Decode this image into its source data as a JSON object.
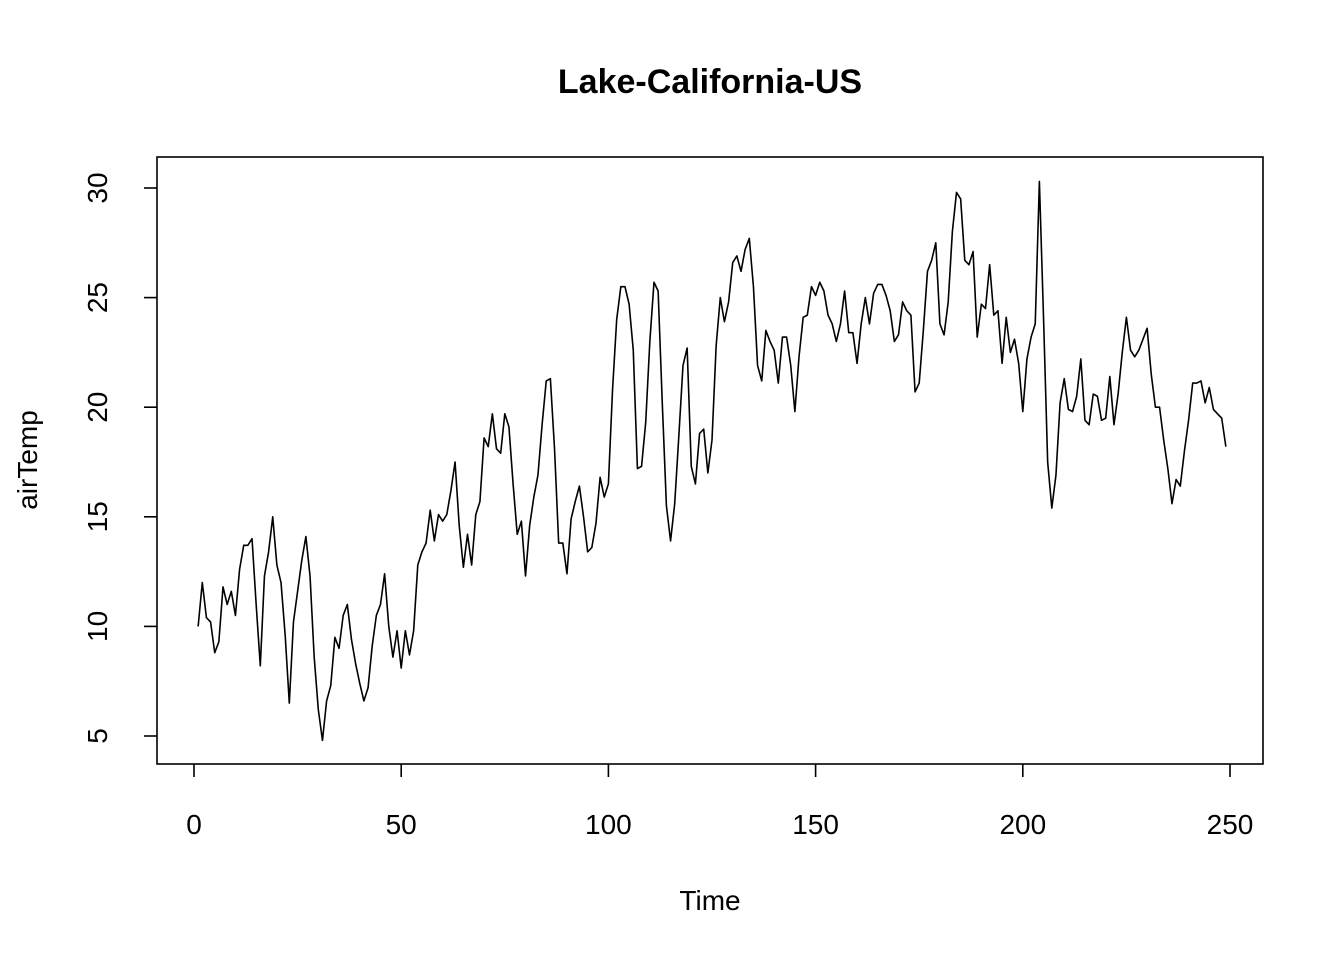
{
  "chart_data": {
    "type": "line",
    "title": "Lake-California-US",
    "xlabel": "Time",
    "ylabel": "airTemp",
    "xlim": [
      0,
      250
    ],
    "ylim": [
      4.3,
      31.0
    ],
    "xticks": [
      0,
      50,
      100,
      150,
      200,
      250
    ],
    "yticks": [
      5,
      10,
      15,
      20,
      25,
      30
    ],
    "xtick_labels": [
      "0",
      "50",
      "100",
      "150",
      "200",
      "250"
    ],
    "ytick_labels": [
      "5",
      "10",
      "15",
      "20",
      "25",
      "30"
    ],
    "grid": false,
    "series": [
      {
        "color": "#000000",
        "x_start": 1,
        "values": [
          10.0,
          12.0,
          10.4,
          10.2,
          8.8,
          9.3,
          11.8,
          11.0,
          11.6,
          10.5,
          12.6,
          13.7,
          13.7,
          14.0,
          11.0,
          8.2,
          12.3,
          13.4,
          15.0,
          12.8,
          12.0,
          9.6,
          6.5,
          10.2,
          11.6,
          13.0,
          14.1,
          12.3,
          8.6,
          6.2,
          4.8,
          6.6,
          7.3,
          9.5,
          9.0,
          10.5,
          11.0,
          9.4,
          8.3,
          7.4,
          6.6,
          7.2,
          9.1,
          10.5,
          11.0,
          12.4,
          10.0,
          8.6,
          9.8,
          8.1,
          9.8,
          8.7,
          9.8,
          12.8,
          13.4,
          13.8,
          15.3,
          13.9,
          15.1,
          14.8,
          15.1,
          16.2,
          17.5,
          14.6,
          12.7,
          14.2,
          12.8,
          15.1,
          15.7,
          18.6,
          18.2,
          19.7,
          18.1,
          17.9,
          19.7,
          19.1,
          16.5,
          14.2,
          14.8,
          12.3,
          14.6,
          15.9,
          16.9,
          19.2,
          21.2,
          21.3,
          18.1,
          13.8,
          13.8,
          12.4,
          14.9,
          15.7,
          16.4,
          15.0,
          13.4,
          13.6,
          14.7,
          16.8,
          15.9,
          16.5,
          20.8,
          24.0,
          25.5,
          25.5,
          24.7,
          22.6,
          17.2,
          17.3,
          19.3,
          23.0,
          25.7,
          25.3,
          20.2,
          15.5,
          13.9,
          15.6,
          18.7,
          21.9,
          22.7,
          17.3,
          16.5,
          18.8,
          19.0,
          17.0,
          18.5,
          22.8,
          25.0,
          23.9,
          24.8,
          26.6,
          26.9,
          26.2,
          27.2,
          27.7,
          25.5,
          21.9,
          21.2,
          23.5,
          23.0,
          22.6,
          21.1,
          23.2,
          23.2,
          21.9,
          19.8,
          22.3,
          24.1,
          24.2,
          25.5,
          25.1,
          25.7,
          25.3,
          24.2,
          23.8,
          23.0,
          23.8,
          25.3,
          23.4,
          23.4,
          22.0,
          23.8,
          25.0,
          23.8,
          25.2,
          25.6,
          25.6,
          25.1,
          24.4,
          23.0,
          23.3,
          24.8,
          24.4,
          24.2,
          20.7,
          21.1,
          23.5,
          26.2,
          26.7,
          27.5,
          23.8,
          23.3,
          24.8,
          28.0,
          29.8,
          29.5,
          26.7,
          26.5,
          27.1,
          23.2,
          24.7,
          24.5,
          26.5,
          24.2,
          24.4,
          22.0,
          24.1,
          22.5,
          23.1,
          22.0,
          19.8,
          22.2,
          23.2,
          23.8,
          30.3,
          24.1,
          17.5,
          15.4,
          16.9,
          20.2,
          21.3,
          19.9,
          19.8,
          20.5,
          22.2,
          19.4,
          19.2,
          20.6,
          20.5,
          19.4,
          19.5,
          21.4,
          19.2,
          20.6,
          22.5,
          24.1,
          22.6,
          22.3,
          22.6,
          23.1,
          23.6,
          21.5,
          20.0,
          20.0,
          18.5,
          17.2,
          15.6,
          16.7,
          16.4,
          18.0,
          19.4,
          21.1,
          21.1,
          21.2,
          20.2,
          20.9,
          19.9,
          19.7,
          19.5,
          18.2
        ]
      }
    ]
  }
}
